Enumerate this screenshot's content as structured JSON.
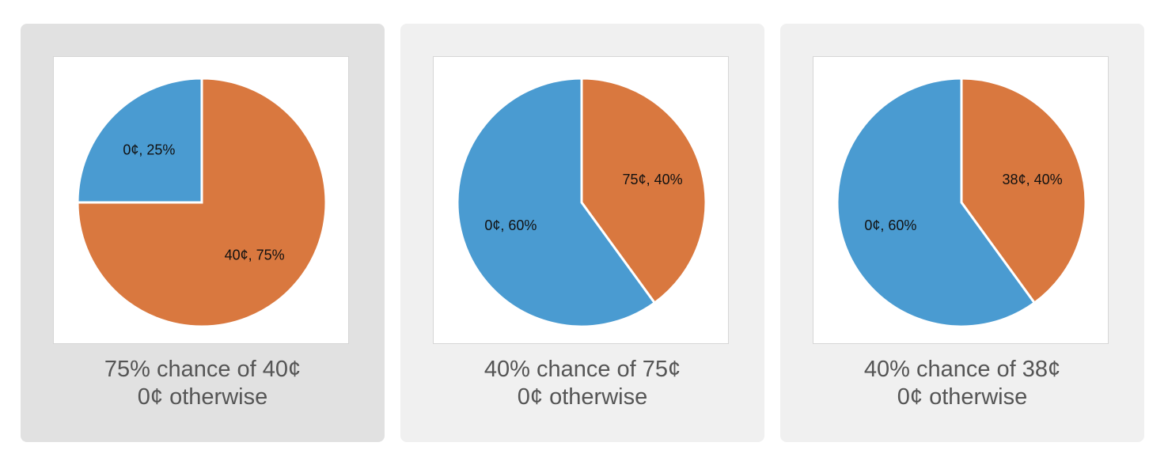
{
  "colors": {
    "orange": "#d9783f",
    "blue": "#4a9bd1",
    "card_selected": "#e1e1e1",
    "card": "#f0f0f0"
  },
  "chart_data": [
    {
      "type": "pie",
      "selected": true,
      "slices": [
        {
          "label": "40¢, 75%",
          "value": 75,
          "color": "#d9783f"
        },
        {
          "label": "0¢, 25%",
          "value": 25,
          "color": "#4a9bd1"
        }
      ],
      "caption": {
        "line1": "75% chance of 40¢",
        "line2": "0¢ otherwise"
      }
    },
    {
      "type": "pie",
      "selected": false,
      "slices": [
        {
          "label": "75¢, 40%",
          "value": 40,
          "color": "#d9783f"
        },
        {
          "label": "0¢, 60%",
          "value": 60,
          "color": "#4a9bd1"
        }
      ],
      "caption": {
        "line1": "40% chance of 75¢",
        "line2": "0¢ otherwise"
      }
    },
    {
      "type": "pie",
      "selected": false,
      "slices": [
        {
          "label": "38¢, 40%",
          "value": 40,
          "color": "#d9783f"
        },
        {
          "label": "0¢, 60%",
          "value": 60,
          "color": "#4a9bd1"
        }
      ],
      "caption": {
        "line1": "40% chance of 38¢",
        "line2": "0¢ otherwise"
      }
    }
  ]
}
